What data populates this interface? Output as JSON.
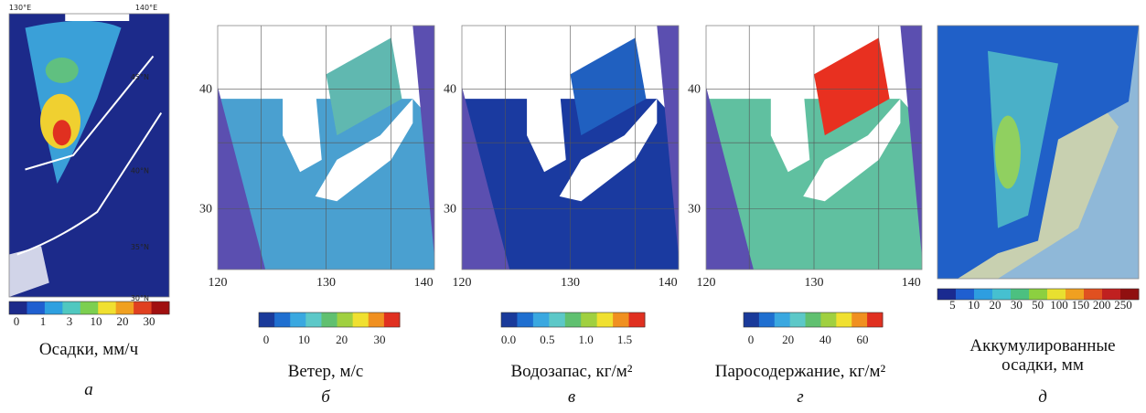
{
  "panels": [
    {
      "letter": "а",
      "caption": [
        "Осадки, мм/ч"
      ],
      "lon_labels": [
        "130°E",
        "140°E"
      ],
      "lat_labels": [
        "45°N",
        "40°N",
        "35°N",
        "30°N"
      ],
      "colorbar": {
        "labels": [
          "0",
          "1",
          "3",
          "10",
          "20",
          "30"
        ],
        "colors": [
          "#1c2a8a",
          "#1f5fd0",
          "#2ea0e0",
          "#50c8c0",
          "#7ccf50",
          "#f0e030",
          "#f0a020",
          "#e04020",
          "#a01010"
        ]
      }
    },
    {
      "letter": "б",
      "caption": [
        "Ветер, м/с"
      ],
      "lon_labels": [
        "120",
        "130",
        "140"
      ],
      "lat_labels": [
        "40",
        "30"
      ],
      "colorbar": {
        "labels": [
          "0",
          "10",
          "20",
          "30"
        ],
        "colors": [
          "#1a3a9a",
          "#1f6fd0",
          "#3aa8e0",
          "#5cc8c8",
          "#60c070",
          "#a0d040",
          "#f0e030",
          "#f09020",
          "#e03020"
        ]
      }
    },
    {
      "letter": "в",
      "caption": [
        "Водозапас, кг/м²"
      ],
      "lon_labels": [
        "120",
        "130",
        "140"
      ],
      "lat_labels": [
        "40",
        "30"
      ],
      "colorbar": {
        "labels": [
          "0.0",
          "0.5",
          "1.0",
          "1.5"
        ],
        "colors": [
          "#1a3a9a",
          "#1f6fd0",
          "#3aa8e0",
          "#5cc8c8",
          "#60c070",
          "#a0d040",
          "#f0e030",
          "#f09020",
          "#e03020"
        ]
      }
    },
    {
      "letter": "г",
      "caption": [
        "Паросодержание, кг/м²"
      ],
      "lon_labels": [
        "120",
        "130",
        "140"
      ],
      "lat_labels": [
        "40",
        "30"
      ],
      "colorbar": {
        "labels": [
          "0",
          "20",
          "40",
          "60"
        ],
        "colors": [
          "#1a3a9a",
          "#1f6fd0",
          "#3aa8e0",
          "#5cc8c8",
          "#60c070",
          "#a0d040",
          "#f0e030",
          "#f09020",
          "#e03020"
        ]
      }
    },
    {
      "letter": "д",
      "caption": [
        "Аккумулированные",
        "осадки, мм"
      ],
      "lon_labels": [],
      "lat_labels": [],
      "colorbar": {
        "labels": [
          "5",
          "10",
          "20",
          "30",
          "50",
          "100",
          "150",
          "200",
          "250"
        ],
        "colors": [
          "#1a2a90",
          "#1f5fd0",
          "#2e9ee0",
          "#46c0d0",
          "#4cc080",
          "#8cd040",
          "#e8e030",
          "#f0a020",
          "#e05020",
          "#c02020",
          "#901010"
        ]
      }
    }
  ]
}
